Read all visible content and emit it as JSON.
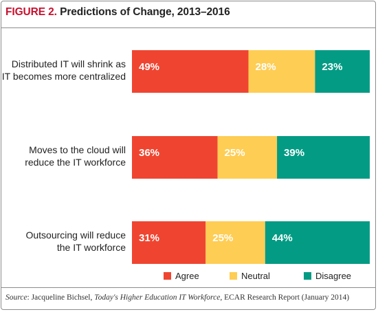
{
  "title": {
    "figure_label": "FIGURE 2.",
    "text": "Predictions of Change, 2013–2016"
  },
  "colors": {
    "Agree": "#ef4530",
    "Neutral": "#fecd53",
    "Disagree": "#039b84",
    "accent": "#c8102e"
  },
  "chart_data": {
    "type": "bar",
    "orientation": "horizontal",
    "stacked": true,
    "percent_stacked": true,
    "categories": [
      "Distributed IT will shrink as IT becomes more centralized",
      "Moves to the cloud will reduce the IT workforce",
      "Outsourcing will reduce the IT workforce"
    ],
    "category_lines": [
      [
        "Distributed IT will shrink as",
        "IT becomes more centralized"
      ],
      [
        "Moves to the cloud will",
        "reduce the IT workforce"
      ],
      [
        "Outsourcing will reduce",
        "the IT workforce"
      ]
    ],
    "series": [
      {
        "name": "Agree",
        "values": [
          49,
          36,
          31
        ]
      },
      {
        "name": "Neutral",
        "values": [
          28,
          25,
          25
        ]
      },
      {
        "name": "Disagree",
        "values": [
          23,
          39,
          44
        ]
      }
    ],
    "data_labels": [
      [
        "49%",
        "28%",
        "23%"
      ],
      [
        "36%",
        "25%",
        "39%"
      ],
      [
        "31%",
        "25%",
        "44%"
      ]
    ],
    "xlim": [
      0,
      100
    ],
    "grid": false,
    "legend_position": "bottom"
  },
  "source": {
    "label": "Source",
    "author": ": Jacqueline Bichsel, ",
    "work": "Today's Higher Education IT Workforce",
    "rest": ", ECAR Research Report (January 2014)"
  }
}
